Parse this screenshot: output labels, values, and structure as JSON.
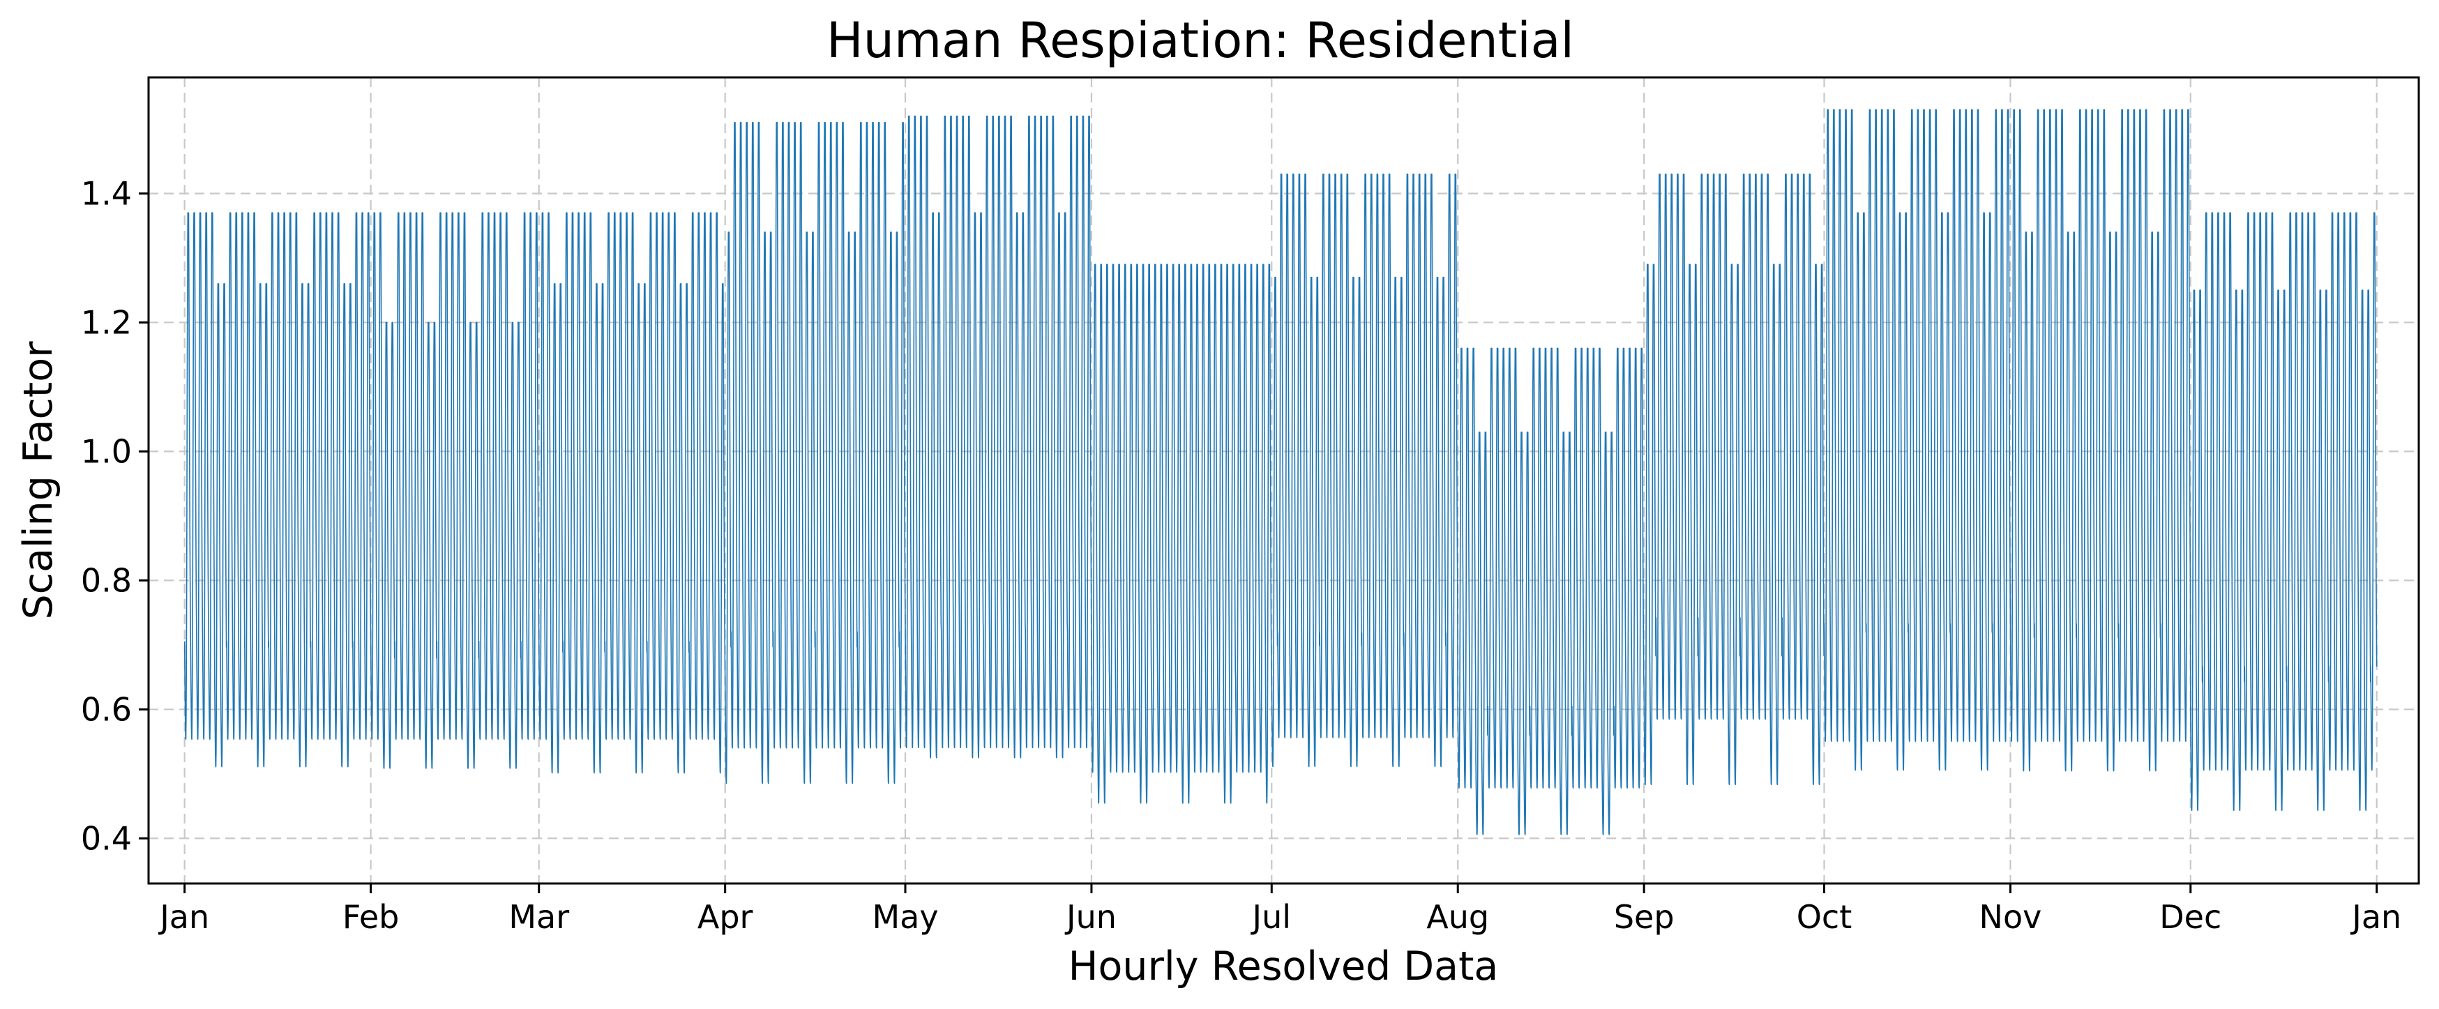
{
  "chart_data": {
    "type": "line",
    "title": "Human Respiation: Residential",
    "xlabel": "Hourly Resolved Data",
    "ylabel": "Scaling Factor",
    "x_ticks": [
      "Jan",
      "Feb",
      "Mar",
      "Apr",
      "May",
      "Jun",
      "Jul",
      "Aug",
      "Sep",
      "Oct",
      "Nov",
      "Dec",
      "Jan"
    ],
    "y_ticks": [
      "0.4",
      "0.6",
      "0.8",
      "1.0",
      "1.2",
      "1.4"
    ],
    "ylim": [
      0.33,
      1.58
    ],
    "x_range_days": [
      -6,
      372
    ],
    "grid": true,
    "resolution": "hourly",
    "pattern": "daily cycle with weekly modulation; weekday and weekend amplitudes per month",
    "monthly_envelope": [
      {
        "month": "Jan",
        "weekday_max": 1.37,
        "weekday_min": 0.52,
        "weekend_max": 1.26,
        "weekend_min": 0.48
      },
      {
        "month": "Feb",
        "weekday_max": 1.37,
        "weekday_min": 0.52,
        "weekend_max": 1.2,
        "weekend_min": 0.48
      },
      {
        "month": "Mar",
        "weekday_max": 1.37,
        "weekday_min": 0.52,
        "weekend_max": 1.26,
        "weekend_min": 0.47
      },
      {
        "month": "Apr",
        "weekday_max": 1.51,
        "weekday_min": 0.5,
        "weekend_max": 1.34,
        "weekend_min": 0.45
      },
      {
        "month": "May",
        "weekday_max": 1.52,
        "weekday_min": 0.5,
        "weekend_max": 1.37,
        "weekend_min": 0.49
      },
      {
        "month": "Jun",
        "weekday_max": 1.29,
        "weekday_min": 0.47,
        "weekend_max": 1.29,
        "weekend_min": 0.42
      },
      {
        "month": "Jul",
        "weekday_max": 1.43,
        "weekday_min": 0.52,
        "weekend_max": 1.27,
        "weekend_min": 0.48
      },
      {
        "month": "Aug",
        "weekday_max": 1.16,
        "weekday_min": 0.45,
        "weekend_max": 1.03,
        "weekend_min": 0.38
      },
      {
        "month": "Sep",
        "weekday_max": 1.43,
        "weekday_min": 0.55,
        "weekend_max": 1.29,
        "weekend_min": 0.45
      },
      {
        "month": "Oct",
        "weekday_max": 1.53,
        "weekday_min": 0.51,
        "weekend_max": 1.37,
        "weekend_min": 0.47
      },
      {
        "month": "Nov",
        "weekday_max": 1.53,
        "weekday_min": 0.51,
        "weekend_max": 1.34,
        "weekend_min": 0.47
      },
      {
        "month": "Dec",
        "weekday_max": 1.37,
        "weekday_min": 0.47,
        "weekend_max": 1.25,
        "weekend_min": 0.41
      }
    ],
    "line_color": "#1f77b4",
    "grid_color": "#c8c8c8"
  }
}
